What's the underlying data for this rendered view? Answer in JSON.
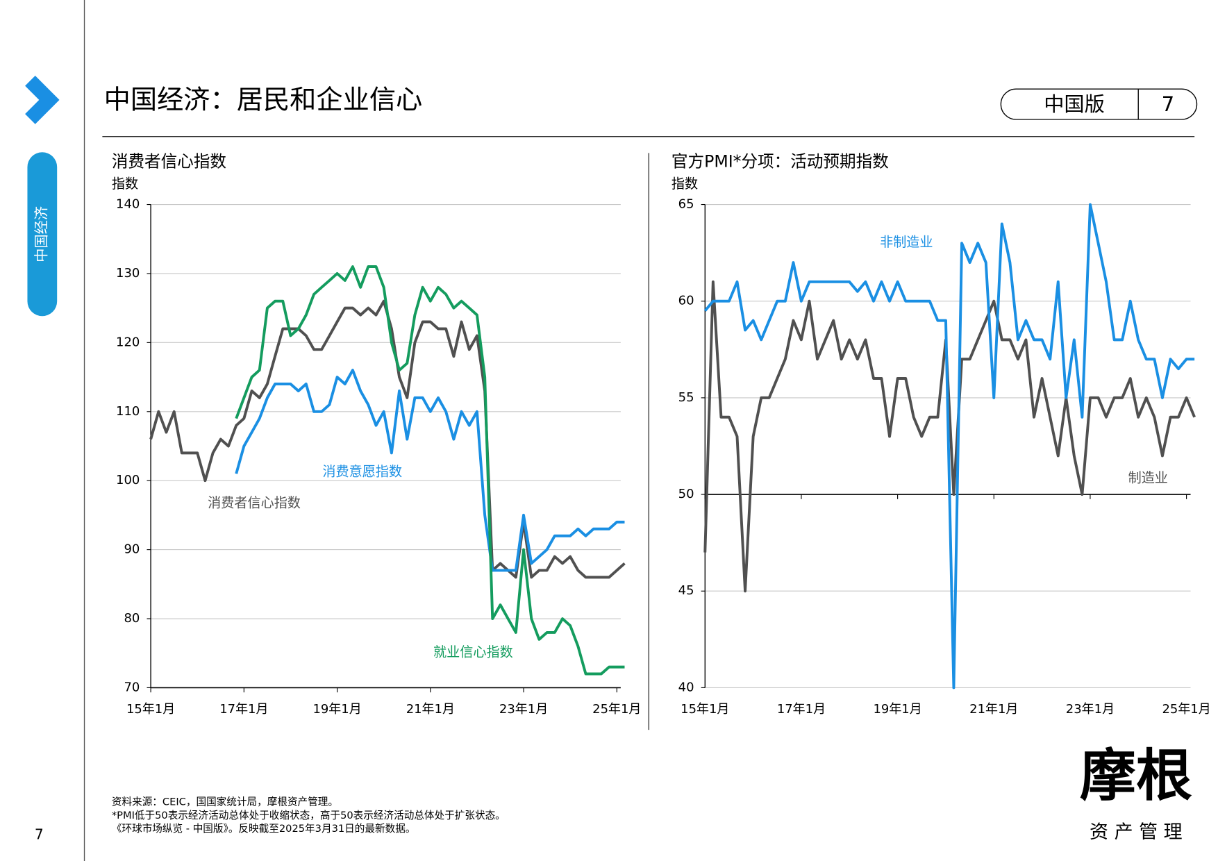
{
  "title": "中国经济：居民和企业信心",
  "edition": "中国版",
  "page_badge": "7",
  "sidebar_label": "中国经济",
  "page_number": "7",
  "notes": [
    "资料来源：CEIC，国国家统计局，摩根资产管理。",
    "*PMI低于50表示经济活动总体处于收缩状态，高于50表示经济活动总体处于扩张状态。",
    "《环球市场纵览 - 中国版》。反映截至2025年3月31日的最新数据。"
  ],
  "logo": {
    "name": "摩根",
    "sub": "资 产 管 理"
  },
  "chart_data": [
    {
      "type": "line",
      "title": "消费者信心指数",
      "y_label": "指数",
      "x": [
        "2015-01",
        "2015-03",
        "2015-05",
        "2015-07",
        "2015-09",
        "2015-11",
        "2016-01",
        "2016-03",
        "2016-05",
        "2016-07",
        "2016-09",
        "2016-11",
        "2017-01",
        "2017-03",
        "2017-05",
        "2017-07",
        "2017-09",
        "2017-11",
        "2018-01",
        "2018-03",
        "2018-05",
        "2018-07",
        "2018-09",
        "2018-11",
        "2019-01",
        "2019-03",
        "2019-05",
        "2019-07",
        "2019-09",
        "2019-11",
        "2020-01",
        "2020-03",
        "2020-05",
        "2020-07",
        "2020-09",
        "2020-11",
        "2021-01",
        "2021-03",
        "2021-05",
        "2021-07",
        "2021-09",
        "2021-11",
        "2022-01",
        "2022-03",
        "2022-05",
        "2022-07",
        "2022-09",
        "2022-11",
        "2023-01",
        "2023-03",
        "2023-05",
        "2023-07",
        "2023-09",
        "2023-11",
        "2024-01",
        "2024-03",
        "2024-05",
        "2024-07",
        "2024-09",
        "2024-11",
        "2025-01",
        "2025-03"
      ],
      "xlim": [
        "2015-01",
        "2025-03"
      ],
      "xticks": [
        {
          "value": "2015-01",
          "label": "15年1月"
        },
        {
          "value": "2017-01",
          "label": "17年1月"
        },
        {
          "value": "2019-01",
          "label": "19年1月"
        },
        {
          "value": "2021-01",
          "label": "21年1月"
        },
        {
          "value": "2023-01",
          "label": "23年1月"
        },
        {
          "value": "2025-01",
          "label": "25年1月"
        }
      ],
      "ylim": [
        70,
        140
      ],
      "yticks": [
        70,
        80,
        90,
        100,
        110,
        120,
        130,
        140
      ],
      "grid": true,
      "series": [
        {
          "name": "消费者信心指数",
          "color": "#505050",
          "values": [
            106,
            110,
            107,
            110,
            104,
            104,
            104,
            100,
            104,
            106,
            105,
            108,
            109,
            113,
            112,
            114,
            118,
            122,
            122,
            122,
            121,
            119,
            119,
            121,
            123,
            125,
            125,
            124,
            125,
            124,
            126,
            122,
            115,
            112,
            120,
            123,
            123,
            122,
            122,
            118,
            123,
            119,
            121,
            113,
            87,
            88,
            87,
            86,
            94,
            86,
            87,
            87,
            89,
            88,
            89,
            87,
            86,
            86,
            86,
            86,
            87,
            88
          ]
        },
        {
          "name": "消费意愿指数",
          "color": "#1a8fe3",
          "values": [
            null,
            null,
            null,
            null,
            null,
            null,
            null,
            null,
            null,
            null,
            null,
            101,
            105,
            107,
            109,
            112,
            114,
            114,
            114,
            113,
            114,
            110,
            110,
            111,
            115,
            114,
            116,
            113,
            111,
            108,
            110,
            104,
            113,
            106,
            112,
            112,
            110,
            112,
            110,
            106,
            110,
            108,
            110,
            95,
            87,
            87,
            87,
            87,
            95,
            88,
            89,
            90,
            92,
            92,
            92,
            93,
            92,
            93,
            93,
            93,
            94,
            94
          ]
        },
        {
          "name": "就业信心指数",
          "color": "#149c5e",
          "values": [
            null,
            null,
            null,
            null,
            null,
            null,
            null,
            null,
            null,
            null,
            null,
            109,
            112,
            115,
            116,
            125,
            126,
            126,
            121,
            122,
            124,
            127,
            128,
            129,
            130,
            129,
            131,
            128,
            131,
            131,
            128,
            120,
            116,
            117,
            124,
            128,
            126,
            128,
            127,
            125,
            126,
            125,
            124,
            115,
            80,
            82,
            80,
            78,
            90,
            80,
            77,
            78,
            78,
            80,
            79,
            76,
            72,
            72,
            72,
            73,
            73,
            73
          ]
        }
      ],
      "annotations": [
        {
          "text": "消费意愿指数",
          "color": "#1a8fe3"
        },
        {
          "text": "消费者信心指数",
          "color": "#505050"
        },
        {
          "text": "就业信心指数",
          "color": "#149c5e"
        }
      ]
    },
    {
      "type": "line",
      "title": "官方PMI*分项：活动预期指数",
      "y_label": "指数",
      "x": [
        "2015-01",
        "2015-03",
        "2015-05",
        "2015-07",
        "2015-09",
        "2015-11",
        "2016-01",
        "2016-03",
        "2016-05",
        "2016-07",
        "2016-09",
        "2016-11",
        "2017-01",
        "2017-03",
        "2017-05",
        "2017-07",
        "2017-09",
        "2017-11",
        "2018-01",
        "2018-03",
        "2018-05",
        "2018-07",
        "2018-09",
        "2018-11",
        "2019-01",
        "2019-03",
        "2019-05",
        "2019-07",
        "2019-09",
        "2019-11",
        "2020-01",
        "2020-03",
        "2020-05",
        "2020-07",
        "2020-09",
        "2020-11",
        "2021-01",
        "2021-03",
        "2021-05",
        "2021-07",
        "2021-09",
        "2021-11",
        "2022-01",
        "2022-03",
        "2022-05",
        "2022-07",
        "2022-09",
        "2022-11",
        "2023-01",
        "2023-03",
        "2023-05",
        "2023-07",
        "2023-09",
        "2023-11",
        "2024-01",
        "2024-03",
        "2024-05",
        "2024-07",
        "2024-09",
        "2024-11",
        "2025-01",
        "2025-03"
      ],
      "xlim": [
        "2015-01",
        "2025-03"
      ],
      "xticks": [
        {
          "value": "2015-01",
          "label": "15年1月"
        },
        {
          "value": "2017-01",
          "label": "17年1月"
        },
        {
          "value": "2019-01",
          "label": "19年1月"
        },
        {
          "value": "2021-01",
          "label": "21年1月"
        },
        {
          "value": "2023-01",
          "label": "23年1月"
        },
        {
          "value": "2025-01",
          "label": "25年1月"
        }
      ],
      "ylim": [
        40,
        65
      ],
      "yticks": [
        40,
        45,
        50,
        55,
        60,
        65
      ],
      "grid": true,
      "x_axis_at": 50,
      "series": [
        {
          "name": "制造业",
          "color": "#505050",
          "values": [
            47,
            61,
            54,
            54,
            53,
            45,
            53,
            55,
            55,
            56,
            57,
            59,
            58,
            60,
            57,
            58,
            59,
            57,
            58,
            57,
            58,
            56,
            56,
            53,
            56,
            56,
            54,
            53,
            54,
            54,
            58,
            50,
            57,
            57,
            58,
            59,
            60,
            58,
            58,
            57,
            58,
            54,
            56,
            54,
            52,
            55,
            52,
            50,
            55,
            55,
            54,
            55,
            55,
            56,
            54,
            55,
            54,
            52,
            54,
            54,
            55,
            54
          ]
        },
        {
          "name": "非制造业",
          "color": "#1a8fe3",
          "values": [
            59.5,
            60,
            60,
            60,
            61,
            58.5,
            59,
            58,
            59,
            60,
            60,
            62,
            60,
            61,
            61,
            61,
            61,
            61,
            61,
            60.5,
            61,
            60,
            61,
            60,
            61,
            60,
            60,
            60,
            60,
            59,
            59,
            40,
            63,
            62,
            63,
            62,
            55,
            64,
            62,
            58,
            59,
            58,
            58,
            57,
            61,
            55,
            58,
            54,
            65,
            63,
            61,
            58,
            58,
            60,
            58,
            57,
            57,
            55,
            57,
            56.5,
            57,
            57
          ]
        }
      ],
      "annotations": [
        {
          "text": "非制造业",
          "color": "#1a8fe3"
        },
        {
          "text": "制造业",
          "color": "#505050"
        }
      ]
    }
  ]
}
